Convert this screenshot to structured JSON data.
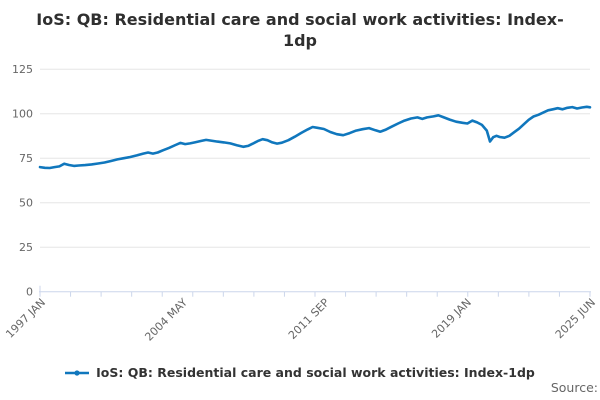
{
  "header": {
    "title": "IoS: QB: Residential care and social work activities: Index-1dp",
    "title_line1": "IoS: QB: Residential care and social work activities: Index-",
    "title_line2": "1dp"
  },
  "legend": {
    "label": "IoS: QB: Residential care and social work activities: Index-1dp",
    "marker": "line-with-dot-marker"
  },
  "source_label": "Source:",
  "colors": {
    "line": "#1077bd",
    "grid": "#e6e6e6",
    "axis": "#ccd6eb",
    "tick_label": "#666666",
    "title_text": "#2f2f2f",
    "legend_text": "#333333",
    "source_text": "#666666"
  },
  "chart_data": {
    "type": "line",
    "title": "IoS: QB: Residential care and social work activities: Index-1dp",
    "xlabel": "",
    "ylabel": "",
    "ylim": [
      0,
      125
    ],
    "ytick_step": 25,
    "ytick_labels": [
      "0",
      "25",
      "50",
      "75",
      "100",
      "125"
    ],
    "grid": "horizontal-only",
    "legend_position": "bottom-center",
    "x_axis": {
      "start_label": "1997 JAN",
      "end_label": "2025 JUN",
      "total_months": 341,
      "minor_tick_count": 19,
      "labeled_ticks": [
        {
          "label": "1997 JAN",
          "month": 0
        },
        {
          "label": "2004 MAY",
          "month": 88
        },
        {
          "label": "2011 SEP",
          "month": 176
        },
        {
          "label": "2019 JAN",
          "month": 264
        },
        {
          "label": "2025 JUN",
          "month": 341
        }
      ]
    },
    "series": [
      {
        "name": "IoS: QB: Residential care and social work activities: Index-1dp",
        "unit": "index",
        "points_format": "[months_since_1997_jan, index_value]",
        "points": [
          [
            0,
            70.0
          ],
          [
            3,
            69.6
          ],
          [
            6,
            69.5
          ],
          [
            9,
            70.0
          ],
          [
            12,
            70.4
          ],
          [
            15,
            71.9
          ],
          [
            18,
            71.2
          ],
          [
            21,
            70.7
          ],
          [
            24,
            70.9
          ],
          [
            28,
            71.1
          ],
          [
            32,
            71.5
          ],
          [
            36,
            72.0
          ],
          [
            40,
            72.6
          ],
          [
            44,
            73.4
          ],
          [
            48,
            74.3
          ],
          [
            52,
            75.0
          ],
          [
            56,
            75.7
          ],
          [
            60,
            76.6
          ],
          [
            64,
            77.6
          ],
          [
            67,
            78.2
          ],
          [
            70,
            77.6
          ],
          [
            73,
            78.2
          ],
          [
            76,
            79.4
          ],
          [
            80,
            80.8
          ],
          [
            84,
            82.4
          ],
          [
            87,
            83.6
          ],
          [
            90,
            82.9
          ],
          [
            93,
            83.3
          ],
          [
            96,
            83.9
          ],
          [
            100,
            84.7
          ],
          [
            103,
            85.3
          ],
          [
            106,
            84.9
          ],
          [
            110,
            84.3
          ],
          [
            114,
            83.9
          ],
          [
            118,
            83.3
          ],
          [
            122,
            82.3
          ],
          [
            126,
            81.4
          ],
          [
            129,
            81.9
          ],
          [
            132,
            83.2
          ],
          [
            135,
            84.6
          ],
          [
            138,
            85.7
          ],
          [
            141,
            85.1
          ],
          [
            144,
            83.9
          ],
          [
            147,
            83.2
          ],
          [
            150,
            83.7
          ],
          [
            154,
            85.1
          ],
          [
            158,
            87.1
          ],
          [
            162,
            89.2
          ],
          [
            166,
            91.2
          ],
          [
            169,
            92.5
          ],
          [
            172,
            92.1
          ],
          [
            176,
            91.4
          ],
          [
            180,
            89.7
          ],
          [
            184,
            88.5
          ],
          [
            188,
            87.9
          ],
          [
            192,
            89.1
          ],
          [
            196,
            90.5
          ],
          [
            200,
            91.3
          ],
          [
            204,
            91.9
          ],
          [
            208,
            90.7
          ],
          [
            211,
            89.9
          ],
          [
            214,
            90.9
          ],
          [
            218,
            92.7
          ],
          [
            222,
            94.5
          ],
          [
            226,
            96.1
          ],
          [
            230,
            97.3
          ],
          [
            234,
            97.9
          ],
          [
            237,
            97.1
          ],
          [
            240,
            97.9
          ],
          [
            244,
            98.5
          ],
          [
            247,
            99.1
          ],
          [
            250,
            98.1
          ],
          [
            254,
            96.7
          ],
          [
            258,
            95.5
          ],
          [
            262,
            94.9
          ],
          [
            265,
            94.5
          ],
          [
            268,
            96.1
          ],
          [
            271,
            95.1
          ],
          [
            274,
            93.7
          ],
          [
            277,
            90.5
          ],
          [
            279,
            84.4
          ],
          [
            281,
            86.8
          ],
          [
            283,
            87.6
          ],
          [
            285,
            86.9
          ],
          [
            288,
            86.5
          ],
          [
            291,
            87.6
          ],
          [
            294,
            89.6
          ],
          [
            297,
            91.6
          ],
          [
            300,
            94.1
          ],
          [
            303,
            96.6
          ],
          [
            306,
            98.4
          ],
          [
            309,
            99.4
          ],
          [
            312,
            100.6
          ],
          [
            315,
            101.9
          ],
          [
            318,
            102.5
          ],
          [
            321,
            103.1
          ],
          [
            324,
            102.5
          ],
          [
            327,
            103.3
          ],
          [
            330,
            103.7
          ],
          [
            333,
            102.9
          ],
          [
            336,
            103.5
          ],
          [
            339,
            103.9
          ],
          [
            341,
            103.6
          ]
        ]
      }
    ]
  }
}
